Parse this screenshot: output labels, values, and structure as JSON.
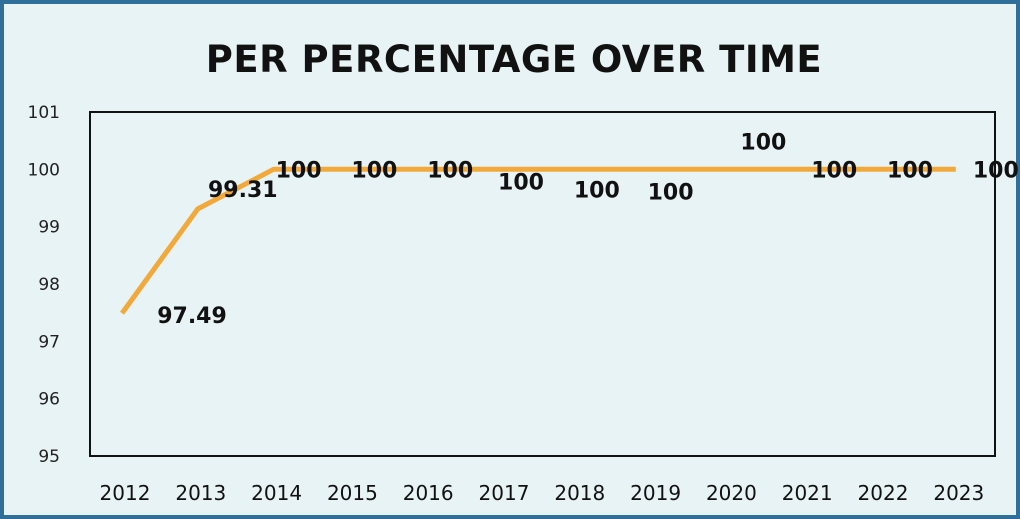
{
  "chart_data": {
    "type": "line",
    "title": "PER PERCENTAGE OVER TIME",
    "xlabel": "",
    "ylabel": "",
    "categories": [
      "2012",
      "2013",
      "2014",
      "2015",
      "2016",
      "2017",
      "2018",
      "2019",
      "2020",
      "2021",
      "2022",
      "2023"
    ],
    "series": [
      {
        "values": [
          97.49,
          99.31,
          100,
          100,
          100,
          100,
          100,
          100,
          100,
          100,
          100,
          100
        ],
        "data_labels": [
          "97.49",
          "99.31",
          "100",
          "100",
          "100",
          "100",
          "100",
          "100",
          "100",
          "100",
          "100",
          "100"
        ],
        "color": "#f2a93b"
      }
    ],
    "ylim": [
      95,
      101
    ],
    "yticks": [
      "95",
      "96",
      "97",
      "98",
      "99",
      "100",
      "101"
    ],
    "grid": false,
    "legend": "none"
  }
}
